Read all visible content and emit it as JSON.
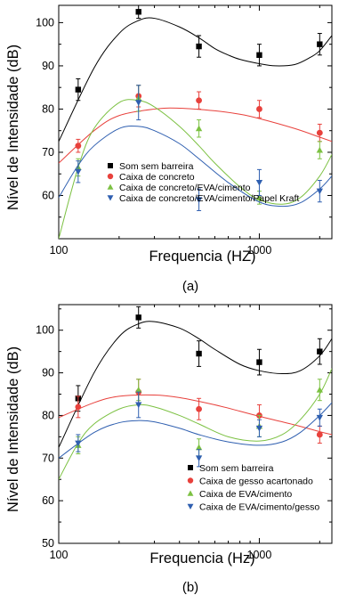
{
  "chart_data": [
    {
      "type": "scatter",
      "panel_label": "(a)",
      "xlabel": "Frequencia (HZ)",
      "ylabel": "Nível de Intensidade (dB)",
      "x_scale": "log",
      "xlim": [
        100,
        2300
      ],
      "ylim": [
        50,
        104
      ],
      "x_ticks": [
        {
          "value": 100,
          "label": "100"
        },
        {
          "value": 1000,
          "label": "1000"
        }
      ],
      "y_ticks": [
        {
          "value": 60,
          "label": "60"
        },
        {
          "value": 70,
          "label": "70"
        },
        {
          "value": 80,
          "label": "80"
        },
        {
          "value": 90,
          "label": "90"
        },
        {
          "value": 100,
          "label": "100"
        }
      ],
      "legend_position": "bottom-left",
      "grid": false,
      "series": [
        {
          "name": "Som sem barreira",
          "color": "#000000",
          "marker": "square",
          "x": [
            125,
            250,
            500,
            1000,
            2000
          ],
          "y": [
            84.5,
            102.5,
            94.5,
            92.5,
            95.0
          ],
          "err": [
            2.5,
            1.5,
            2.5,
            2.5,
            2.5
          ],
          "fit_x": [
            100,
            150,
            200,
            250,
            300,
            400,
            500,
            600,
            700,
            800,
            1000,
            1200,
            1500,
            1800,
            2000,
            2300
          ],
          "fit_y": [
            72.5,
            89.5,
            97.5,
            100.5,
            101.0,
            99.0,
            96.5,
            94.0,
            92.5,
            91.5,
            90.5,
            90.0,
            90.3,
            92.0,
            93.5,
            97.0
          ]
        },
        {
          "name": "Caixa de concreto",
          "color": "#e8413c",
          "marker": "circle",
          "x": [
            125,
            250,
            500,
            1000,
            2000
          ],
          "y": [
            71.5,
            83.0,
            82.0,
            80.0,
            74.5
          ],
          "err": [
            1.5,
            2.5,
            2.0,
            2.0,
            2.0
          ],
          "fit_x": [
            100,
            150,
            200,
            300,
            400,
            600,
            800,
            1000,
            1500,
            2000,
            2300
          ],
          "fit_y": [
            67.5,
            75.0,
            78.5,
            80.0,
            80.2,
            79.6,
            78.8,
            77.8,
            75.5,
            73.5,
            72.5
          ]
        },
        {
          "name": "Caixa de concreto/EVA/cimento",
          "color": "#7cc142",
          "marker": "triangle-up",
          "x": [
            125,
            250,
            500,
            1000,
            2000
          ],
          "y": [
            66.5,
            82.5,
            75.5,
            59.5,
            70.5
          ],
          "err": [
            2.0,
            3.0,
            2.0,
            1.5,
            2.0
          ],
          "fit_x": [
            100,
            125,
            150,
            200,
            250,
            300,
            400,
            500,
            600,
            800,
            1000,
            1300,
            1600,
            2000,
            2300
          ],
          "fit_y": [
            50.0,
            66.5,
            75.5,
            81.5,
            82.0,
            80.5,
            76.0,
            71.5,
            67.5,
            62.0,
            59.0,
            58.0,
            59.5,
            64.5,
            69.5
          ]
        },
        {
          "name": "Caixa de concreto/EVA/cimento/Papel Kraft",
          "color": "#2f5fb0",
          "marker": "triangle-down",
          "x": [
            125,
            250,
            500,
            1000,
            2000
          ],
          "y": [
            65.5,
            81.5,
            59.0,
            63.0,
            61.0
          ],
          "err": [
            2.5,
            4.0,
            2.5,
            3.0,
            2.5
          ],
          "fit_x": [
            100,
            125,
            150,
            200,
            250,
            300,
            400,
            500,
            700,
            1000,
            1300,
            1600,
            2000,
            2300
          ],
          "fit_y": [
            59.5,
            67.0,
            71.5,
            75.5,
            76.0,
            75.0,
            72.0,
            68.5,
            63.0,
            58.5,
            57.5,
            58.3,
            61.5,
            64.5
          ]
        }
      ]
    },
    {
      "type": "scatter",
      "panel_label": "(b)",
      "xlabel": "Frequencia (Hz)",
      "ylabel": "Nível de Intensidade (dB)",
      "x_scale": "log",
      "xlim": [
        100,
        2300
      ],
      "ylim": [
        50,
        106
      ],
      "x_ticks": [
        {
          "value": 100,
          "label": "100"
        },
        {
          "value": 1000,
          "label": "1000"
        }
      ],
      "y_ticks": [
        {
          "value": 50,
          "label": "50"
        },
        {
          "value": 60,
          "label": "60"
        },
        {
          "value": 70,
          "label": "70"
        },
        {
          "value": 80,
          "label": "80"
        },
        {
          "value": 90,
          "label": "90"
        },
        {
          "value": 100,
          "label": "100"
        }
      ],
      "legend_position": "bottom-right",
      "grid": false,
      "series": [
        {
          "name": "Som sem barreira",
          "color": "#000000",
          "marker": "square",
          "x": [
            125,
            250,
            500,
            1000,
            2000
          ],
          "y": [
            84.0,
            103.0,
            94.5,
            92.5,
            95.0
          ],
          "err": [
            3.0,
            2.5,
            3.0,
            3.0,
            3.0
          ],
          "fit_x": [
            100,
            150,
            200,
            250,
            300,
            400,
            500,
            600,
            800,
            1000,
            1300,
            1600,
            2000,
            2300
          ],
          "fit_y": [
            72.5,
            90.0,
            98.5,
            101.5,
            102.0,
            100.5,
            98.0,
            95.5,
            92.0,
            90.5,
            89.8,
            90.5,
            94.0,
            98.0
          ]
        },
        {
          "name": "Caixa de gesso acartonado",
          "color": "#e8413c",
          "marker": "circle",
          "x": [
            125,
            250,
            500,
            1000,
            2000
          ],
          "y": [
            82.0,
            85.5,
            81.5,
            80.0,
            75.5
          ],
          "err": [
            2.5,
            3.0,
            2.5,
            2.5,
            2.0
          ],
          "fit_x": [
            100,
            150,
            200,
            300,
            400,
            600,
            800,
            1000,
            1500,
            2000,
            2300
          ],
          "fit_y": [
            79.5,
            83.0,
            84.5,
            84.8,
            84.2,
            82.5,
            81.0,
            79.8,
            77.8,
            76.2,
            75.5
          ]
        },
        {
          "name": "Caixa de EVA/cimento",
          "color": "#7cc142",
          "marker": "triangle-up",
          "x": [
            125,
            250,
            500,
            1000,
            2000
          ],
          "y": [
            73.0,
            86.0,
            72.5,
            77.5,
            86.0
          ],
          "err": [
            2.0,
            2.5,
            2.0,
            2.5,
            2.5
          ],
          "fit_x": [
            100,
            125,
            150,
            200,
            250,
            300,
            400,
            500,
            700,
            1000,
            1300,
            1600,
            2000,
            2300
          ],
          "fit_y": [
            65.0,
            73.5,
            78.0,
            81.5,
            82.5,
            82.0,
            80.0,
            78.0,
            75.0,
            74.0,
            75.5,
            79.0,
            85.0,
            91.0
          ]
        },
        {
          "name": "Caixa de EVA/cimento/gesso",
          "color": "#2f5fb0",
          "marker": "triangle-down",
          "x": [
            125,
            250,
            500,
            1000,
            2000
          ],
          "y": [
            73.5,
            82.5,
            70.0,
            77.0,
            79.5
          ],
          "err": [
            2.0,
            3.0,
            2.0,
            2.0,
            2.0
          ],
          "fit_x": [
            100,
            150,
            200,
            250,
            300,
            400,
            500,
            700,
            1000,
            1300,
            1600,
            2000,
            2300
          ],
          "fit_y": [
            70.0,
            76.0,
            78.3,
            78.8,
            78.5,
            77.0,
            75.5,
            73.8,
            73.0,
            73.8,
            76.0,
            80.0,
            83.0
          ]
        }
      ]
    }
  ]
}
